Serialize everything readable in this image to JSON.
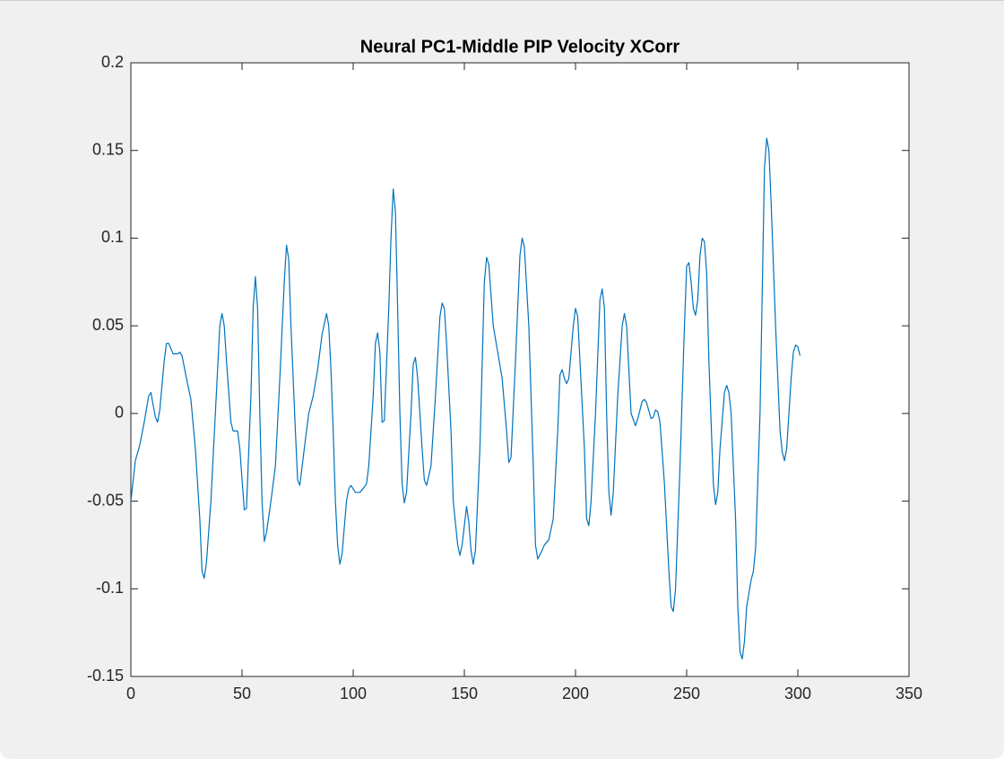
{
  "chart_data": {
    "type": "line",
    "title": "Neural PC1-Middle PIP Velocity XCorr",
    "x": [
      0,
      2,
      4,
      6,
      8,
      9,
      11,
      12,
      13,
      15,
      16,
      17,
      19,
      21,
      22,
      23,
      25,
      27,
      29,
      31,
      32,
      33,
      34,
      36,
      38,
      40,
      41,
      42,
      43,
      45,
      46,
      48,
      49,
      51,
      52,
      54,
      55,
      56,
      57,
      58,
      59,
      60,
      61,
      63,
      65,
      67,
      69,
      70,
      71,
      72,
      74,
      75,
      76,
      78,
      80,
      82,
      84,
      86,
      88,
      89,
      90,
      91,
      92,
      93,
      94,
      95,
      97,
      98,
      99,
      101,
      103,
      105,
      106,
      107,
      109,
      110,
      111,
      112,
      113,
      114,
      116,
      117,
      118,
      119,
      120,
      121,
      122,
      123,
      124,
      126,
      127,
      128,
      129,
      131,
      132,
      133,
      135,
      137,
      139,
      140,
      141,
      142,
      144,
      145,
      147,
      148,
      149,
      151,
      152,
      153,
      154,
      155,
      157,
      159,
      160,
      161,
      163,
      165,
      167,
      169,
      170,
      171,
      173,
      175,
      176,
      177,
      179,
      181,
      182,
      183,
      185,
      186,
      188,
      190,
      192,
      193,
      194,
      195,
      196,
      197,
      199,
      200,
      201,
      202,
      204,
      205,
      206,
      207,
      209,
      211,
      212,
      213,
      214,
      215,
      216,
      217,
      219,
      221,
      222,
      223,
      225,
      227,
      228,
      230,
      231,
      232,
      234,
      235,
      236,
      237,
      238,
      240,
      242,
      243,
      244,
      245,
      247,
      249,
      250,
      251,
      252,
      253,
      254,
      255,
      256,
      257,
      258,
      259,
      260,
      262,
      263,
      264,
      265,
      267,
      268,
      269,
      270,
      272,
      273,
      274,
      275,
      276,
      277,
      279,
      280,
      281,
      283,
      284,
      285,
      286,
      287,
      288,
      290,
      292,
      293,
      294,
      295,
      297,
      298,
      299,
      300,
      301
    ],
    "values": [
      -0.05,
      -0.027,
      -0.018,
      -0.005,
      0.01,
      0.012,
      -0.002,
      -0.005,
      0.002,
      0.03,
      0.04,
      0.04,
      0.034,
      0.034,
      0.035,
      0.033,
      0.02,
      0.008,
      -0.02,
      -0.06,
      -0.09,
      -0.094,
      -0.085,
      -0.05,
      0.0,
      0.05,
      0.057,
      0.05,
      0.03,
      -0.005,
      -0.01,
      -0.01,
      -0.02,
      -0.055,
      -0.054,
      0.01,
      0.06,
      0.078,
      0.06,
      0.0,
      -0.05,
      -0.073,
      -0.068,
      -0.05,
      -0.03,
      0.02,
      0.075,
      0.096,
      0.088,
      0.05,
      -0.01,
      -0.038,
      -0.041,
      -0.02,
      0.0,
      0.01,
      0.025,
      0.045,
      0.057,
      0.05,
      0.025,
      -0.01,
      -0.05,
      -0.075,
      -0.086,
      -0.08,
      -0.05,
      -0.043,
      -0.041,
      -0.045,
      -0.045,
      -0.042,
      -0.04,
      -0.03,
      0.01,
      0.04,
      0.046,
      0.035,
      -0.005,
      -0.004,
      0.06,
      0.1,
      0.128,
      0.115,
      0.06,
      0.0,
      -0.04,
      -0.051,
      -0.045,
      0.0,
      0.028,
      0.032,
      0.02,
      -0.02,
      -0.038,
      -0.041,
      -0.03,
      0.01,
      0.055,
      0.063,
      0.06,
      0.04,
      -0.01,
      -0.05,
      -0.075,
      -0.081,
      -0.075,
      -0.053,
      -0.062,
      -0.078,
      -0.086,
      -0.078,
      -0.02,
      0.075,
      0.089,
      0.085,
      0.05,
      0.035,
      0.02,
      -0.01,
      -0.028,
      -0.025,
      0.03,
      0.09,
      0.1,
      0.095,
      0.05,
      -0.03,
      -0.075,
      -0.083,
      -0.078,
      -0.075,
      -0.072,
      -0.06,
      -0.01,
      0.022,
      0.025,
      0.02,
      0.017,
      0.02,
      0.05,
      0.06,
      0.055,
      0.03,
      -0.02,
      -0.06,
      -0.064,
      -0.05,
      0.0,
      0.065,
      0.071,
      0.06,
      0.0,
      -0.045,
      -0.058,
      -0.045,
      0.01,
      0.05,
      0.057,
      0.05,
      0.0,
      -0.007,
      -0.003,
      0.007,
      0.008,
      0.006,
      -0.003,
      -0.002,
      0.002,
      0.001,
      -0.005,
      -0.04,
      -0.09,
      -0.11,
      -0.113,
      -0.1,
      -0.03,
      0.05,
      0.084,
      0.086,
      0.075,
      0.06,
      0.056,
      0.065,
      0.09,
      0.1,
      0.098,
      0.08,
      0.03,
      -0.04,
      -0.052,
      -0.045,
      -0.02,
      0.012,
      0.016,
      0.012,
      0.0,
      -0.06,
      -0.11,
      -0.136,
      -0.14,
      -0.13,
      -0.11,
      -0.095,
      -0.09,
      -0.077,
      0.0,
      0.07,
      0.14,
      0.157,
      0.15,
      0.12,
      0.05,
      -0.01,
      -0.022,
      -0.027,
      -0.02,
      0.02,
      0.035,
      0.039,
      0.038,
      0.033
    ],
    "color": "#0072bd",
    "xlim": [
      0,
      350
    ],
    "xticks": [
      0,
      50,
      100,
      150,
      200,
      250,
      300,
      350
    ],
    "ylim": [
      -0.15,
      0.2
    ],
    "yticks": [
      -0.15,
      -0.1,
      -0.05,
      0,
      0.05,
      0.1,
      0.15,
      0.2
    ]
  }
}
